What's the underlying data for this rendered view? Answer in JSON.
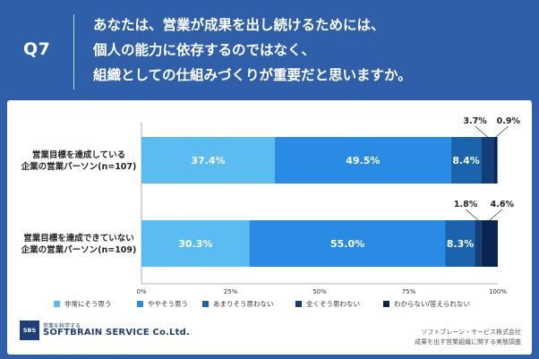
{
  "header": {
    "question_number": "Q7",
    "question_lines": [
      "あなたは、営業が成果を出し続けるためには、",
      "個人の能力に依存するのではなく、",
      "組織としての仕組みづくりが重要だと思いますか。"
    ]
  },
  "chart_data": {
    "type": "bar",
    "orientation": "horizontal-stacked-100",
    "categories": [
      [
        "営業目標を達成している",
        "企業の営業パーソン(n=107)"
      ],
      [
        "営業目標を達成できていない",
        "企業の営業パーソン(n=109)"
      ]
    ],
    "series": [
      {
        "name": "非常にそう思う",
        "color": "#5bbcf2",
        "values": [
          37.4,
          30.3
        ],
        "labels": [
          "37.4%",
          "30.3%"
        ]
      },
      {
        "name": "ややそう思う",
        "color": "#2a8be4",
        "values": [
          49.5,
          55.0
        ],
        "labels": [
          "49.5%",
          "55.0%"
        ]
      },
      {
        "name": "あまりそう思わない",
        "color": "#1a64ad",
        "values": [
          8.4,
          8.3
        ],
        "labels": [
          "8.4%",
          "8.3%"
        ]
      },
      {
        "name": "全くそう思わない",
        "color": "#123f78",
        "values": [
          3.7,
          1.8
        ],
        "labels": [
          "3.7%",
          "1.8%"
        ]
      },
      {
        "name": "わからない/答えられない",
        "color": "#0b2450",
        "values": [
          0.9,
          4.6
        ],
        "labels": [
          "0.9%",
          "4.6%"
        ]
      }
    ],
    "x_ticks": [
      "0%",
      "25%",
      "50%",
      "75%",
      "100%"
    ],
    "xlim": [
      0,
      100
    ],
    "legend_position": "bottom",
    "grid": false
  },
  "branding": {
    "logo_box_text": "SBS",
    "logo_sub": "営業を科学する",
    "logo_main": "SOFTBRAIN SERVICE Co.Ltd."
  },
  "source": {
    "company": "ソフトブレーン・サービス株式会社",
    "survey": "成果を出す営業組織に関する実態調査"
  }
}
